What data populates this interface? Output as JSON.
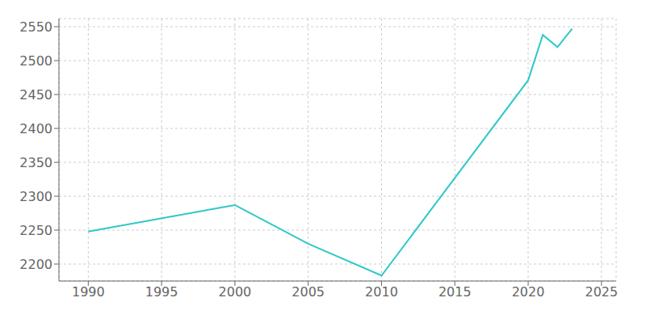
{
  "chart_data": {
    "type": "line",
    "x": [
      1990,
      2000,
      2005,
      2010,
      2020,
      2021,
      2022,
      2023
    ],
    "values": [
      2248,
      2287,
      2230,
      2183,
      2471,
      2538,
      2520,
      2547
    ],
    "color": "#2ec8c8",
    "xlim": [
      1988,
      2026
    ],
    "ylim": [
      2175,
      2562
    ],
    "xticks": [
      1990,
      1995,
      2000,
      2005,
      2010,
      2015,
      2020,
      2025
    ],
    "yticks": [
      2200,
      2250,
      2300,
      2350,
      2400,
      2450,
      2500,
      2550
    ],
    "grid": true
  }
}
